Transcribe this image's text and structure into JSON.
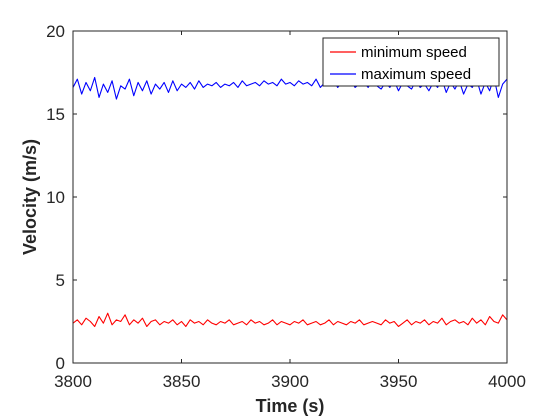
{
  "chart_data": {
    "type": "line",
    "title": "",
    "xlabel": "Time (s)",
    "ylabel": "Velocity (m/s)",
    "xlim": [
      3800,
      4000
    ],
    "ylim": [
      0,
      20
    ],
    "xticks": [
      3800,
      3850,
      3900,
      3950,
      4000
    ],
    "yticks": [
      0,
      5,
      10,
      15,
      20
    ],
    "grid": false,
    "legend_position": "top-right",
    "series": [
      {
        "name": "minimum speed",
        "color": "#ff0000",
        "x": [
          3800,
          3802,
          3804,
          3806,
          3808,
          3810,
          3812,
          3814,
          3816,
          3818,
          3820,
          3822,
          3824,
          3826,
          3828,
          3830,
          3832,
          3834,
          3836,
          3838,
          3840,
          3842,
          3844,
          3846,
          3848,
          3850,
          3852,
          3854,
          3856,
          3858,
          3860,
          3862,
          3864,
          3866,
          3868,
          3870,
          3872,
          3874,
          3876,
          3878,
          3880,
          3882,
          3884,
          3886,
          3888,
          3890,
          3892,
          3894,
          3896,
          3898,
          3900,
          3902,
          3904,
          3906,
          3908,
          3910,
          3912,
          3914,
          3916,
          3918,
          3920,
          3922,
          3924,
          3926,
          3928,
          3930,
          3932,
          3934,
          3936,
          3938,
          3940,
          3942,
          3944,
          3946,
          3948,
          3950,
          3952,
          3954,
          3956,
          3958,
          3960,
          3962,
          3964,
          3966,
          3968,
          3970,
          3972,
          3974,
          3976,
          3978,
          3980,
          3982,
          3984,
          3986,
          3988,
          3990,
          3992,
          3994,
          3996,
          3998,
          4000
        ],
        "y": [
          2.4,
          2.6,
          2.3,
          2.7,
          2.5,
          2.2,
          2.8,
          2.4,
          3.0,
          2.3,
          2.6,
          2.5,
          2.9,
          2.3,
          2.6,
          2.4,
          2.7,
          2.2,
          2.5,
          2.6,
          2.3,
          2.5,
          2.4,
          2.6,
          2.3,
          2.5,
          2.2,
          2.6,
          2.4,
          2.5,
          2.3,
          2.6,
          2.4,
          2.3,
          2.5,
          2.4,
          2.6,
          2.3,
          2.4,
          2.5,
          2.3,
          2.6,
          2.4,
          2.5,
          2.3,
          2.4,
          2.6,
          2.3,
          2.5,
          2.4,
          2.3,
          2.5,
          2.4,
          2.6,
          2.3,
          2.4,
          2.5,
          2.3,
          2.4,
          2.6,
          2.3,
          2.5,
          2.4,
          2.3,
          2.5,
          2.4,
          2.6,
          2.3,
          2.4,
          2.5,
          2.4,
          2.3,
          2.6,
          2.4,
          2.5,
          2.2,
          2.4,
          2.6,
          2.3,
          2.5,
          2.4,
          2.6,
          2.3,
          2.5,
          2.4,
          2.7,
          2.3,
          2.5,
          2.6,
          2.4,
          2.5,
          2.3,
          2.7,
          2.4,
          2.6,
          2.3,
          2.8,
          2.5,
          2.4,
          2.9,
          2.6
        ]
      },
      {
        "name": "maximum speed",
        "color": "#0000ff",
        "x": [
          3800,
          3802,
          3804,
          3806,
          3808,
          3810,
          3812,
          3814,
          3816,
          3818,
          3820,
          3822,
          3824,
          3826,
          3828,
          3830,
          3832,
          3834,
          3836,
          3838,
          3840,
          3842,
          3844,
          3846,
          3848,
          3850,
          3852,
          3854,
          3856,
          3858,
          3860,
          3862,
          3864,
          3866,
          3868,
          3870,
          3872,
          3874,
          3876,
          3878,
          3880,
          3882,
          3884,
          3886,
          3888,
          3890,
          3892,
          3894,
          3896,
          3898,
          3900,
          3902,
          3904,
          3906,
          3908,
          3910,
          3912,
          3914,
          3916,
          3918,
          3920,
          3922,
          3924,
          3926,
          3928,
          3930,
          3932,
          3934,
          3936,
          3938,
          3940,
          3942,
          3944,
          3946,
          3948,
          3950,
          3952,
          3954,
          3956,
          3958,
          3960,
          3962,
          3964,
          3966,
          3968,
          3970,
          3972,
          3974,
          3976,
          3978,
          3980,
          3982,
          3984,
          3986,
          3988,
          3990,
          3992,
          3994,
          3996,
          3998,
          4000
        ],
        "y": [
          16.6,
          17.1,
          16.2,
          16.9,
          16.4,
          17.2,
          16.0,
          16.8,
          16.3,
          17.0,
          15.9,
          16.7,
          16.5,
          17.1,
          16.1,
          16.9,
          16.4,
          17.0,
          16.2,
          16.8,
          16.5,
          16.9,
          16.3,
          17.0,
          16.4,
          16.8,
          16.6,
          16.9,
          16.5,
          17.0,
          16.6,
          16.8,
          16.7,
          16.9,
          16.6,
          16.8,
          16.7,
          16.9,
          16.6,
          17.0,
          16.7,
          16.8,
          16.9,
          16.7,
          17.0,
          16.8,
          16.9,
          16.7,
          17.1,
          16.8,
          16.9,
          16.7,
          17.0,
          16.8,
          16.9,
          16.7,
          17.1,
          16.6,
          16.9,
          16.8,
          17.0,
          16.6,
          16.9,
          16.7,
          17.0,
          16.6,
          16.8,
          16.9,
          16.6,
          17.0,
          16.7,
          16.5,
          16.9,
          16.6,
          17.0,
          16.4,
          16.9,
          16.7,
          16.5,
          17.0,
          16.6,
          16.8,
          16.4,
          16.9,
          16.6,
          17.1,
          16.3,
          16.9,
          16.5,
          17.0,
          16.2,
          16.8,
          16.6,
          17.1,
          16.2,
          16.9,
          16.4,
          17.2,
          16.0,
          16.8,
          17.1
        ]
      }
    ]
  }
}
